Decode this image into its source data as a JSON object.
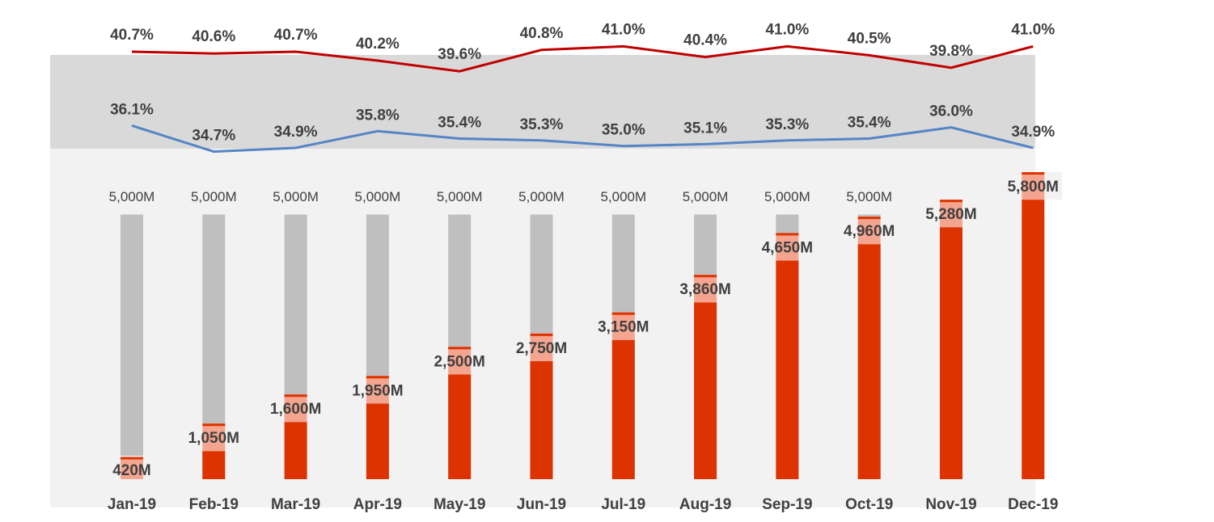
{
  "chart_data": {
    "type": "bar",
    "categories": [
      "Jan-19",
      "Feb-19",
      "Mar-19",
      "Apr-19",
      "May-19",
      "Jun-19",
      "Jul-19",
      "Aug-19",
      "Sep-19",
      "Oct-19",
      "Nov-19",
      "Dec-19"
    ],
    "series": [
      {
        "kind": "bar-target",
        "values": [
          5000,
          5000,
          5000,
          5000,
          5000,
          5000,
          5000,
          5000,
          5000,
          5000,
          5000,
          5000
        ],
        "labels": [
          "5,000M",
          "5,000M",
          "5,000M",
          "5,000M",
          "5,000M",
          "5,000M",
          "5,000M",
          "5,000M",
          "5,000M",
          "5,000M",
          "",
          ""
        ]
      },
      {
        "kind": "bar-actual",
        "values": [
          420,
          1050,
          1600,
          1950,
          2500,
          2750,
          3150,
          3860,
          4650,
          4960,
          5280,
          5800
        ],
        "labels": [
          "420M",
          "1,050M",
          "1,600M",
          "1,950M",
          "2,500M",
          "2,750M",
          "3,150M",
          "3,860M",
          "4,650M",
          "4,960M",
          "5,280M",
          "5,800M"
        ]
      },
      {
        "kind": "line-upper",
        "values": [
          40.7,
          40.6,
          40.7,
          40.2,
          39.6,
          40.8,
          41.0,
          40.4,
          41.0,
          40.5,
          39.8,
          41.0
        ],
        "labels": [
          "40.7%",
          "40.6%",
          "40.7%",
          "40.2%",
          "39.6%",
          "40.8%",
          "41.0%",
          "40.4%",
          "41.0%",
          "40.5%",
          "39.8%",
          "41.0%"
        ]
      },
      {
        "kind": "line-lower",
        "values": [
          36.1,
          34.7,
          34.9,
          35.8,
          35.4,
          35.3,
          35.0,
          35.1,
          35.3,
          35.4,
          36.0,
          34.9
        ],
        "labels": [
          "36.1%",
          "34.7%",
          "34.9%",
          "35.8%",
          "35.4%",
          "35.3%",
          "35.0%",
          "35.1%",
          "35.3%",
          "35.4%",
          "36.0%",
          "34.9%"
        ]
      }
    ],
    "band": {
      "upper": 40.0,
      "lower": 36.0
    },
    "ylim_bars": [
      0,
      5800
    ],
    "grid": false,
    "legend": "none",
    "colors": {
      "actual_bar": "#dd3300",
      "actual_label_bg": "#f4a58f",
      "target_bar": "#bfbfbf",
      "upper_line": "#c00000",
      "lower_line": "#5585c5",
      "band": "#d9d9d9",
      "plot_bg": "#f2f2f2",
      "text": "#404040"
    }
  }
}
